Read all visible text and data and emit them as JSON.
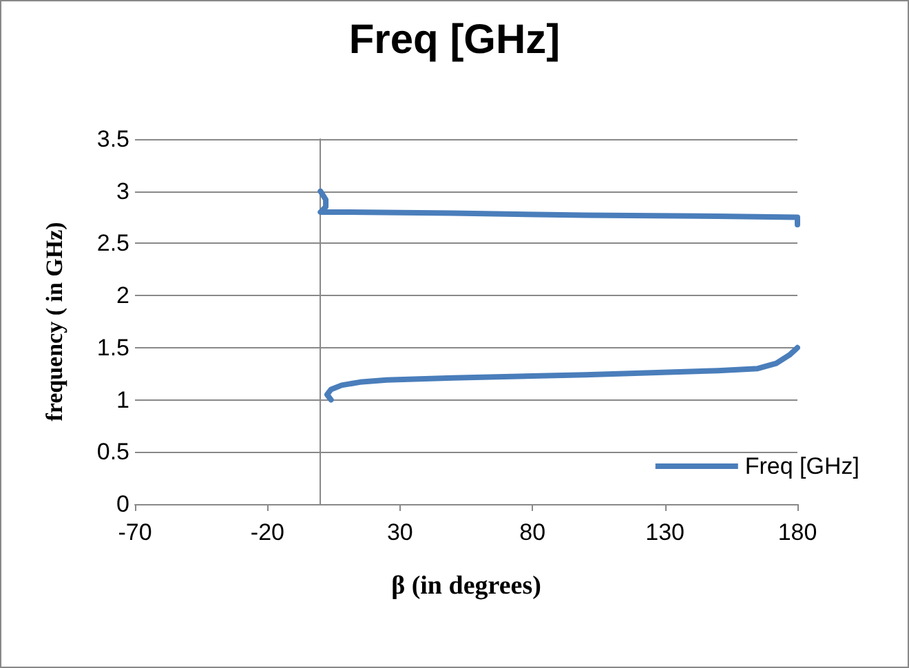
{
  "chart_data": {
    "type": "line",
    "title": "Freq [GHz]",
    "xlabel": "β (in degrees)",
    "ylabel": "frequency ( in GHz)",
    "series": [
      {
        "name": "Freq [GHz]",
        "color": "#4a7ebb",
        "x": [
          0,
          2,
          2,
          0,
          10,
          50,
          100,
          150,
          180,
          180
        ],
        "values": [
          3.0,
          2.92,
          2.85,
          2.8,
          2.8,
          2.79,
          2.77,
          2.76,
          2.75,
          2.68
        ]
      },
      {
        "color": "#4a7ebb",
        "x": [
          4,
          2.5,
          4,
          8,
          15,
          25,
          50,
          100,
          150,
          165,
          172,
          177,
          180
        ],
        "values": [
          1.0,
          1.05,
          1.1,
          1.14,
          1.17,
          1.19,
          1.21,
          1.24,
          1.28,
          1.3,
          1.35,
          1.43,
          1.5
        ]
      }
    ],
    "xlim": [
      -70,
      180
    ],
    "xticks": [
      -70,
      -20,
      30,
      80,
      130,
      180
    ],
    "ylim": [
      0,
      3.5
    ],
    "yticks": [
      0,
      0.5,
      1,
      1.5,
      2,
      2.5,
      3,
      3.5
    ],
    "grid": "y",
    "legend": "bottom right",
    "marker": "none",
    "line_style": "solid"
  }
}
